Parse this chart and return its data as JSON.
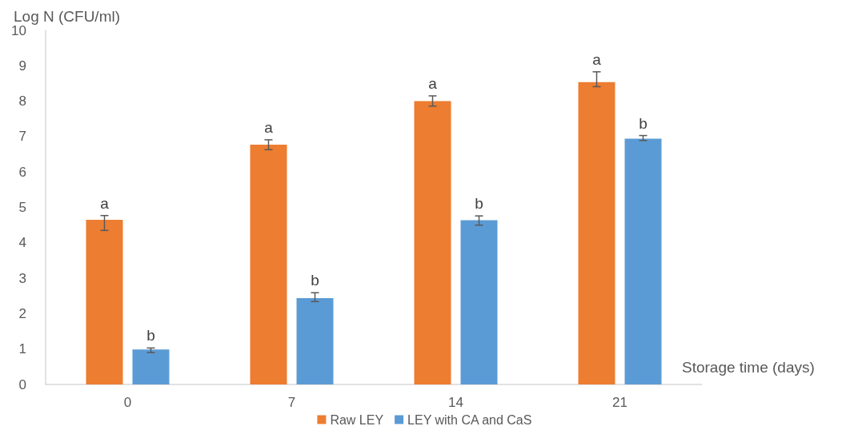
{
  "chart_data": {
    "type": "bar",
    "xlabel": "Storage time (days)",
    "ylabel": "Log N (CFU/ml)",
    "categories": [
      "0",
      "7",
      "14",
      "21"
    ],
    "series": [
      {
        "name": "Raw LEY",
        "color": "#ed7d31",
        "values": [
          4.65,
          6.77,
          8.0,
          8.54
        ],
        "errors": [
          [
            4.35,
            4.77
          ],
          [
            6.63,
            6.91
          ],
          [
            7.86,
            8.15
          ],
          [
            8.41,
            8.83
          ]
        ],
        "value_labels": [
          "a",
          "a",
          "a",
          "a"
        ]
      },
      {
        "name": "LEY with CA and CaS",
        "color": "#5b9bd5",
        "values": [
          0.99,
          2.44,
          4.64,
          6.94
        ],
        "errors": [
          [
            0.9,
            1.03
          ],
          [
            2.34,
            2.59
          ],
          [
            4.5,
            4.76
          ],
          [
            6.89,
            7.03
          ]
        ],
        "value_labels": [
          "b",
          "b",
          "b",
          "b"
        ]
      }
    ],
    "ylim": [
      0,
      10
    ],
    "yticks": [
      0,
      1,
      2,
      3,
      4,
      5,
      6,
      7,
      8,
      9,
      10
    ],
    "grid": false,
    "legend": "bottom"
  }
}
